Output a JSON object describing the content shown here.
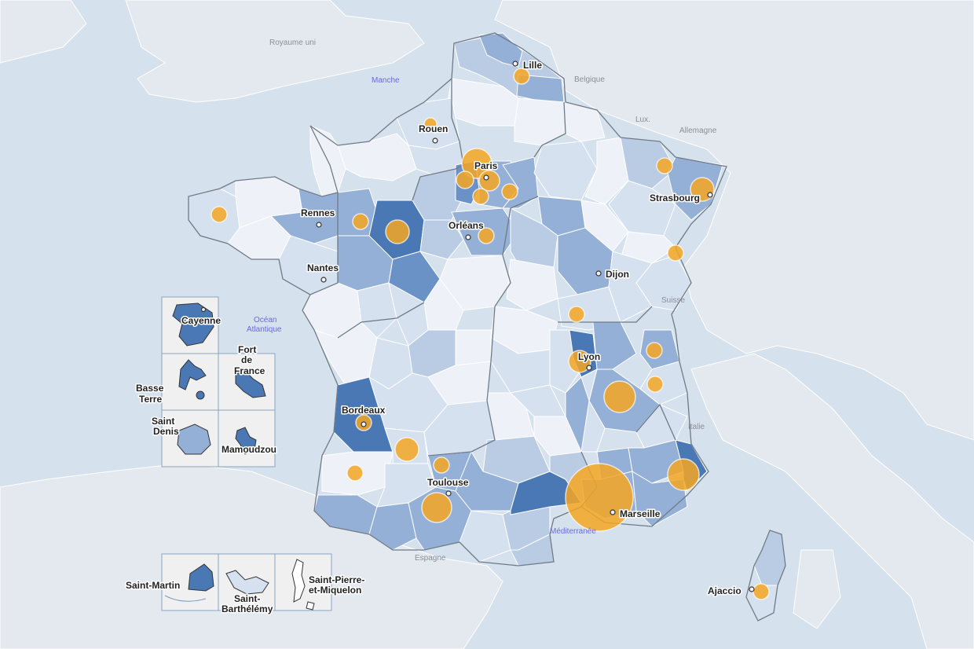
{
  "colors": {
    "sea": "#d5e1ec",
    "land_other": "#e4e9ef",
    "scale": [
      "#eef2f8",
      "#d6e1ef",
      "#b9cce4",
      "#94b0d6",
      "#6b92c7",
      "#4a78b5"
    ],
    "bubble": "#f5a623"
  },
  "map": {
    "cities": [
      {
        "name": "Lille",
        "label": "Lille"
      },
      {
        "name": "Rouen",
        "label": "Rouen"
      },
      {
        "name": "Paris",
        "label": "Paris"
      },
      {
        "name": "Strasbourg",
        "label": "Strasbourg"
      },
      {
        "name": "Rennes",
        "label": "Rennes"
      },
      {
        "name": "Orleans",
        "label": "Orléans"
      },
      {
        "name": "Nantes",
        "label": "Nantes"
      },
      {
        "name": "Dijon",
        "label": "Dijon"
      },
      {
        "name": "Lyon",
        "label": "Lyon"
      },
      {
        "name": "Bordeaux",
        "label": "Bordeaux"
      },
      {
        "name": "Toulouse",
        "label": "Toulouse"
      },
      {
        "name": "Marseille",
        "label": "Marseille"
      },
      {
        "name": "Ajaccio",
        "label": "Ajaccio"
      }
    ],
    "countries": [
      "Royaume uni",
      "Belgique",
      "Lux.",
      "Allemagne",
      "Suisse",
      "Italie",
      "Espagne"
    ],
    "seas": [
      "Manche",
      "Océan",
      "Atlantique",
      "Méditerranée"
    ],
    "insets": {
      "cayenne": "Cayenne",
      "basse_terre_1": "Basse",
      "basse_terre_2": "Terre",
      "fort_de_france_1": "Fort",
      "fort_de_france_2": "de",
      "fort_de_france_3": "France",
      "saint_denis_1": "Saint",
      "saint_denis_2": "Denis",
      "mamoudzou": "Mamoudzou",
      "saint_martin": "Saint-Martin",
      "saint_barthelemy_1": "Saint-",
      "saint_barthelemy_2": "Barthélémy",
      "spm_1": "Saint-Pierre-",
      "spm_2": "et-Miquelon"
    }
  }
}
